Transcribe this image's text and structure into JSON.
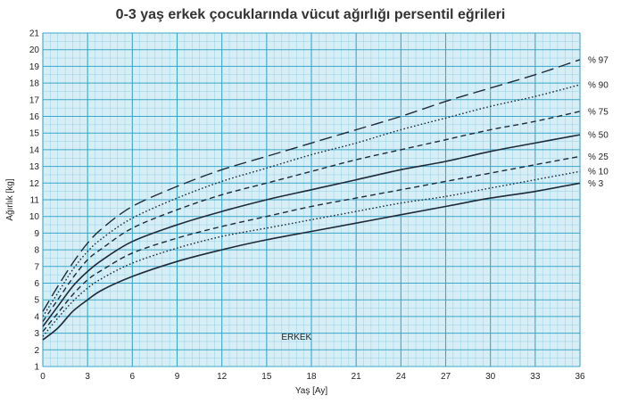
{
  "chart_data": {
    "type": "line",
    "title": "0-3 yaş erkek çocuklarında vücut ağırlığı persentil eğrileri",
    "xlabel": "Yaş [Ay]",
    "ylabel": "Ağırlık [kg]",
    "xlim": [
      0,
      36
    ],
    "ylim": [
      1,
      21
    ],
    "x_ticks": [
      "0",
      "3",
      "6",
      "9",
      "12",
      "15",
      "18",
      "21",
      "24",
      "27",
      "30",
      "33",
      "36"
    ],
    "y_ticks": [
      "1",
      "2",
      "3",
      "4",
      "5",
      "6",
      "7",
      "8",
      "9",
      "10",
      "11",
      "12",
      "13",
      "14",
      "15",
      "16",
      "17",
      "18",
      "19",
      "20",
      "21"
    ],
    "grid": true,
    "annotation": "ERKEK",
    "colors": {
      "grid_major": "#3aa7c9",
      "grid_minor": "#8fd2e6",
      "background": "#d8eef6",
      "line": "#1e2a3a"
    },
    "x": [
      0,
      1,
      2,
      3,
      4,
      6,
      9,
      12,
      15,
      18,
      21,
      24,
      27,
      30,
      33,
      36
    ],
    "series": [
      {
        "name": "% 97",
        "style": "long-dash",
        "values": [
          4.3,
          5.8,
          7.2,
          8.4,
          9.3,
          10.6,
          11.8,
          12.8,
          13.6,
          14.4,
          15.2,
          16.0,
          16.9,
          17.7,
          18.5,
          19.4
        ]
      },
      {
        "name": "% 90",
        "style": "dotted",
        "values": [
          4.0,
          5.4,
          6.8,
          7.9,
          8.7,
          9.9,
          11.1,
          12.1,
          12.9,
          13.7,
          14.4,
          15.2,
          15.9,
          16.6,
          17.2,
          17.9
        ]
      },
      {
        "name": "% 75",
        "style": "short-dash",
        "values": [
          3.7,
          5.0,
          6.3,
          7.4,
          8.1,
          9.3,
          10.4,
          11.3,
          12.0,
          12.7,
          13.4,
          14.0,
          14.6,
          15.2,
          15.7,
          16.3
        ]
      },
      {
        "name": "% 50",
        "style": "solid",
        "values": [
          3.4,
          4.6,
          5.8,
          6.7,
          7.4,
          8.5,
          9.5,
          10.3,
          11.0,
          11.6,
          12.2,
          12.8,
          13.3,
          13.9,
          14.4,
          14.9
        ]
      },
      {
        "name": "% 25",
        "style": "short-dash",
        "values": [
          3.1,
          4.2,
          5.3,
          6.2,
          6.8,
          7.8,
          8.7,
          9.4,
          10.0,
          10.6,
          11.1,
          11.6,
          12.1,
          12.6,
          13.1,
          13.6
        ]
      },
      {
        "name": "% 10",
        "style": "dotted",
        "values": [
          2.8,
          3.9,
          4.9,
          5.7,
          6.3,
          7.2,
          8.1,
          8.8,
          9.3,
          9.8,
          10.3,
          10.8,
          11.2,
          11.7,
          12.2,
          12.7
        ]
      },
      {
        "name": "% 3",
        "style": "solid",
        "values": [
          2.6,
          3.3,
          4.3,
          5.0,
          5.6,
          6.4,
          7.3,
          8.0,
          8.6,
          9.1,
          9.6,
          10.1,
          10.6,
          11.1,
          11.5,
          12.0
        ]
      }
    ]
  }
}
